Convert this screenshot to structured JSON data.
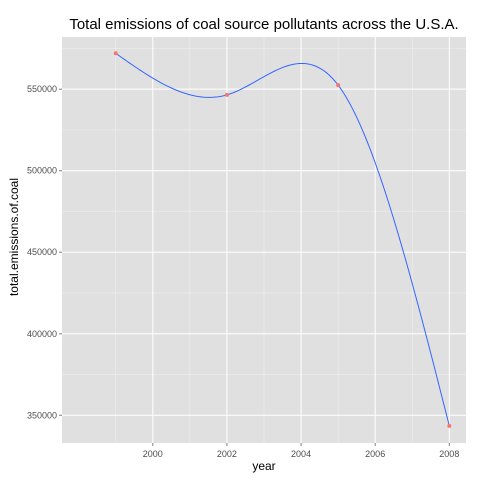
{
  "chart_data": {
    "type": "line",
    "title": "Total emissions of coal source pollutants across the U.S.A.",
    "xlabel": "year",
    "ylabel": "total.emissions.of.coal",
    "x": [
      1999,
      2002,
      2005,
      2008
    ],
    "series": [
      {
        "values": [
          572000,
          546500,
          552500,
          343500
        ]
      }
    ],
    "xlim": [
      1997.55,
      2008.45
    ],
    "ylim": [
      333000,
      582000
    ],
    "x_ticks": [
      2000,
      2002,
      2004,
      2006,
      2008
    ],
    "y_ticks": [
      350000,
      400000,
      450000,
      500000,
      550000
    ],
    "grid": true,
    "smoothed_curve": true,
    "colors": {
      "panel_background": "#e0e0e0",
      "grid": "#ffffff",
      "line": "#3366ff",
      "points": "#f8766d",
      "tick_text": "#4d4d4d"
    }
  }
}
